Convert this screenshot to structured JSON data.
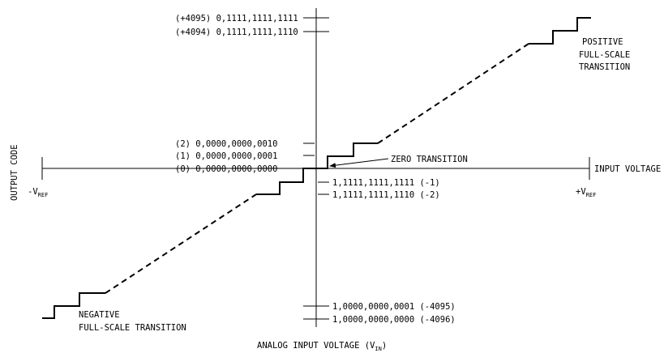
{
  "axes": {
    "x_axis_label": "INPUT VOLTAGE",
    "y_axis_label": "OUTPUT CODE",
    "bottom_label": "ANALOG INPUT VOLTAGE (V",
    "bottom_label_sub": "IN",
    "bottom_label_close": ")",
    "neg_ref_prefix": "-V",
    "pos_ref_prefix": "+V",
    "ref_sub": "REF"
  },
  "codes": {
    "pos_max": "(+4095) 0,1111,1111,1111",
    "pos_max_minus1": "(+4094) 0,1111,1111,1110",
    "plus2": "(2) 0,0000,0000,0010",
    "plus1": "(1) 0,0000,0000,0001",
    "zero": "(0) 0,0000,0000,0000",
    "minus1": "1,1111,1111,1111 (-1)",
    "minus2": "1,1111,1111,1110 (-2)",
    "neg_min_plus1": "1,0000,0000,0001 (-4095)",
    "neg_min": "1,0000,0000,0000 (-4096)"
  },
  "annotations": {
    "zero_transition": "ZERO TRANSITION",
    "pos_fs_line1": "POSITIVE",
    "pos_fs_line2": "FULL-SCALE",
    "pos_fs_line3": "TRANSITION",
    "neg_fs_line1": "NEGATIVE",
    "neg_fs_line2": "FULL-SCALE TRANSITION"
  }
}
